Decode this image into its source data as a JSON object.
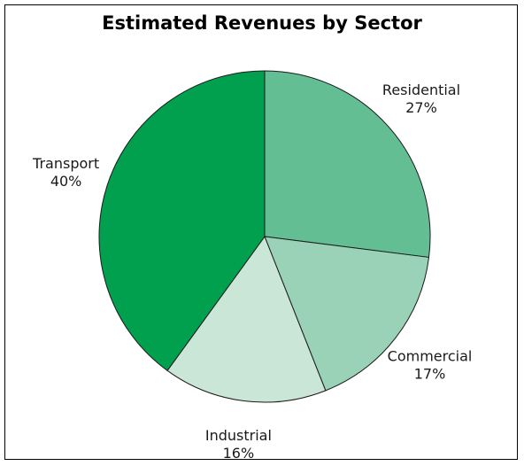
{
  "chart_data": {
    "type": "pie",
    "title": "Estimated Revenues by Sector",
    "slices": [
      {
        "label": "Residential",
        "value": 27,
        "value_label": "27%",
        "color": "#63bf93"
      },
      {
        "label": "Commercial",
        "value": 17,
        "value_label": "17%",
        "color": "#99d2b6"
      },
      {
        "label": "Industrial",
        "value": 16,
        "value_label": "16%",
        "color": "#c9e6d7"
      },
      {
        "label": "Transport",
        "value": 40,
        "value_label": "40%",
        "color": "#00a04f"
      }
    ],
    "legend": "none",
    "labels": "outside"
  }
}
